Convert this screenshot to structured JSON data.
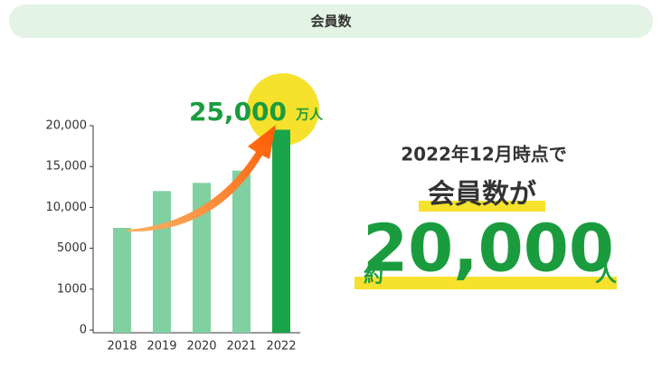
{
  "header": {
    "title": "会員数"
  },
  "chart_data": {
    "type": "bar",
    "categories": [
      "2018",
      "2019",
      "2020",
      "2021",
      "2022"
    ],
    "values": [
      7500,
      12000,
      13000,
      14500,
      19500
    ],
    "colors": [
      "#80d0a1",
      "#80d0a1",
      "#80d0a1",
      "#80d0a1",
      "#1aa54b"
    ],
    "ylim": [
      0,
      20000
    ],
    "yticks": [
      0,
      1000,
      5000,
      {
        "value": 10000,
        "label": "10,000"
      },
      {
        "value": 15000,
        "label": "15,000"
      },
      {
        "value": 20000,
        "label": "20,000"
      }
    ],
    "callout": {
      "number": "25,000",
      "unit": "万人"
    }
  },
  "summary": {
    "line1": "2022年12月時点で",
    "line2": "会員数が",
    "prefix": "約",
    "number": "20,000",
    "unit": "人"
  }
}
